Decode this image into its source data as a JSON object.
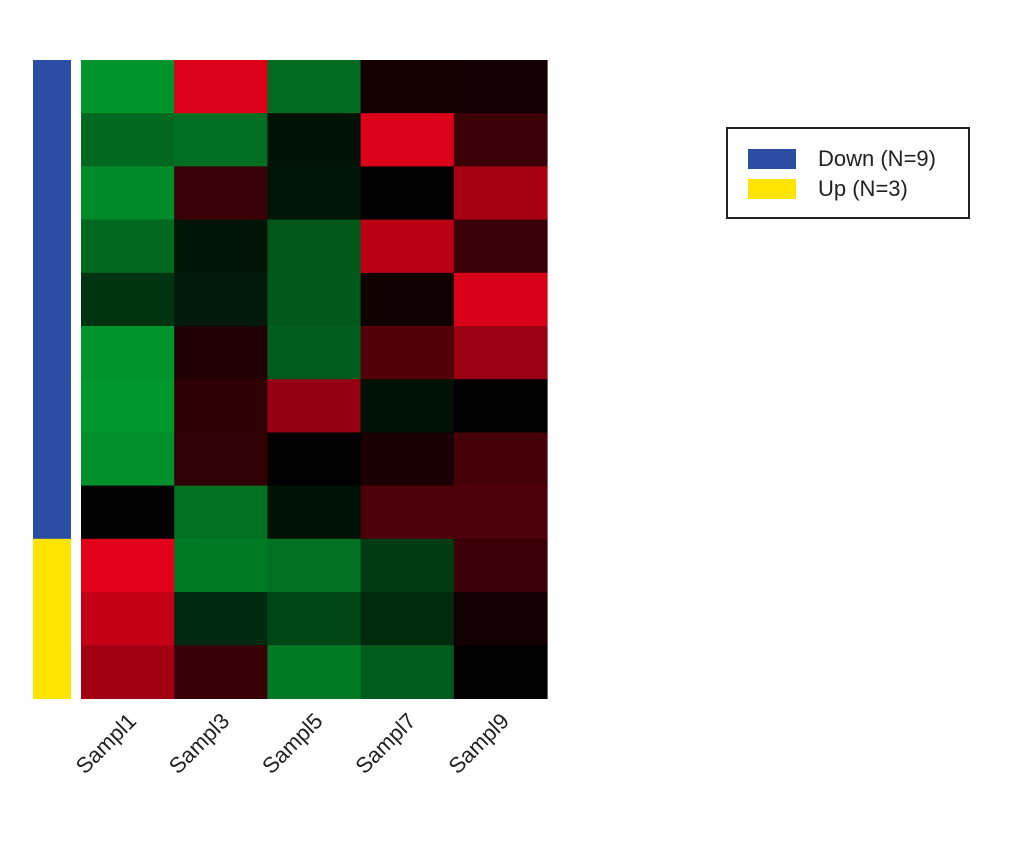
{
  "chart_data": {
    "type": "heatmap",
    "x_labels": [
      "Sampl1",
      "Sampl3",
      "Sampl5",
      "Sampl7",
      "Sampl9"
    ],
    "colorscale": {
      "low": "#00a832",
      "mid": "#000000",
      "high": "#e8001a"
    },
    "value_range": [
      -1,
      1
    ],
    "values": [
      [
        -0.88,
        0.95,
        -0.63,
        0.09,
        0.08
      ],
      [
        -0.62,
        -0.66,
        -0.1,
        0.95,
        0.26
      ],
      [
        -0.83,
        0.25,
        -0.13,
        0.0,
        0.72
      ],
      [
        -0.62,
        -0.12,
        -0.52,
        0.8,
        0.25
      ],
      [
        -0.31,
        -0.15,
        -0.53,
        0.07,
        0.93
      ],
      [
        -0.88,
        0.14,
        -0.56,
        0.35,
        0.66
      ],
      [
        -0.9,
        0.2,
        0.64,
        -0.1,
        0.0
      ],
      [
        -0.86,
        0.21,
        0.0,
        0.11,
        0.3
      ],
      [
        0.0,
        -0.68,
        -0.1,
        0.33,
        0.33
      ],
      [
        0.97,
        -0.73,
        -0.68,
        -0.35,
        0.26
      ],
      [
        0.85,
        -0.25,
        -0.42,
        -0.26,
        0.08
      ],
      [
        0.7,
        0.24,
        -0.72,
        -0.55,
        0.0
      ]
    ],
    "row_annotation": [
      "Down",
      "Down",
      "Down",
      "Down",
      "Down",
      "Down",
      "Down",
      "Down",
      "Down",
      "Up",
      "Up",
      "Up"
    ],
    "legend": [
      {
        "key": "Down",
        "label": "Down (N=9)",
        "color": "#2b4da3"
      },
      {
        "key": "Up",
        "label": "Up (N=3)",
        "color": "#ffe400"
      }
    ],
    "legend_placement": "top-right",
    "grid": false
  }
}
